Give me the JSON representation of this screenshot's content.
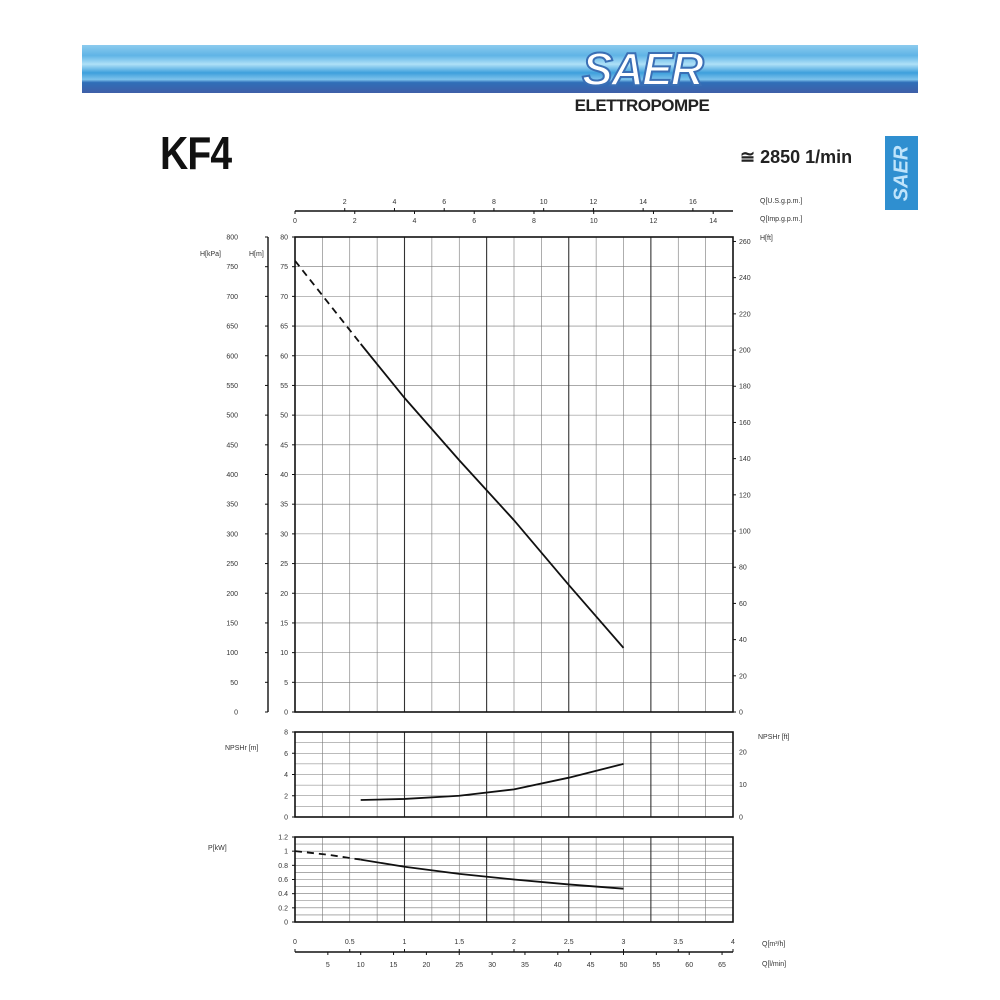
{
  "header": {
    "logo_text": "SAER",
    "logo_subtitle": "ELETTROPOMPE",
    "model": "KF4",
    "speed": "≅ 2850 1/min",
    "side_tab": "SAER"
  },
  "colors": {
    "banner_blue": "#3e9fdc",
    "banner_dark": "#3f5fa8",
    "side_tab": "#2f8fd0",
    "curve": "#000000"
  },
  "chart_data": [
    {
      "type": "line",
      "panel": "head",
      "xlabel": "Q[m³/h]",
      "xlim": [
        0,
        4
      ],
      "x_ticks": [
        "0",
        "0.5",
        "1",
        "1.5",
        "2",
        "2.5",
        "3",
        "3.5",
        "4"
      ],
      "secondary_x": [
        {
          "label": "Q[U.S.g.p.m.]",
          "ticks": [
            2,
            4,
            6,
            8,
            10,
            12,
            14,
            16
          ]
        },
        {
          "label": "Q[Imp.g.p.m.]",
          "ticks": [
            0,
            2,
            4,
            6,
            8,
            10,
            12,
            14
          ]
        },
        {
          "label": "Q[l/min]",
          "ticks": [
            5,
            10,
            15,
            20,
            25,
            30,
            35,
            40,
            45,
            50,
            55,
            60,
            65
          ]
        }
      ],
      "ylabel": "H[m]",
      "ylim": [
        0,
        80
      ],
      "y_ticks": [
        0,
        5,
        10,
        15,
        20,
        25,
        30,
        35,
        40,
        45,
        50,
        55,
        60,
        65,
        70,
        75,
        80
      ],
      "ylabel_kpa": "H[kPa]",
      "y_ticks_kpa": [
        0,
        50,
        100,
        150,
        200,
        250,
        300,
        350,
        400,
        450,
        500,
        550,
        600,
        650,
        700,
        750,
        800
      ],
      "ylabel_right": "H[ft]",
      "y_ticks_right": [
        0,
        20,
        40,
        60,
        80,
        100,
        120,
        140,
        160,
        180,
        200,
        220,
        240,
        260
      ],
      "grid": true,
      "series": [
        {
          "style": "dashed",
          "x": [
            0,
            0.3,
            0.6
          ],
          "y": [
            76,
            69,
            62
          ]
        },
        {
          "style": "solid",
          "x": [
            0.6,
            1,
            1.5,
            2,
            2.5,
            3
          ],
          "y": [
            62,
            52.9,
            42.4,
            32.3,
            21.4,
            10.8
          ]
        }
      ]
    },
    {
      "type": "line",
      "panel": "npsh",
      "ylabel": "NPSHr [m]",
      "ylim": [
        0,
        8
      ],
      "y_ticks": [
        0,
        2,
        4,
        6,
        8
      ],
      "ylabel_right": "NPSHr [ft]",
      "y_ticks_right": [
        0,
        10,
        20
      ],
      "grid": true,
      "series": [
        {
          "style": "solid",
          "x": [
            0.6,
            1,
            1.5,
            2,
            2.5,
            3
          ],
          "y": [
            1.6,
            1.7,
            2.0,
            2.6,
            3.7,
            5.0
          ]
        }
      ]
    },
    {
      "type": "line",
      "panel": "power",
      "ylabel": "P[kW]",
      "ylim": [
        0,
        1.2
      ],
      "y_ticks": [
        "0",
        "0.2",
        "0.4",
        "0.6",
        "0.8",
        "1",
        "1.2"
      ],
      "grid": true,
      "series": [
        {
          "style": "dashed",
          "x": [
            0,
            0.3,
            0.6
          ],
          "y": [
            1.0,
            0.95,
            0.88
          ]
        },
        {
          "style": "solid",
          "x": [
            0.6,
            1,
            1.5,
            2,
            2.5,
            3
          ],
          "y": [
            0.88,
            0.78,
            0.68,
            0.6,
            0.53,
            0.47
          ]
        }
      ]
    }
  ]
}
